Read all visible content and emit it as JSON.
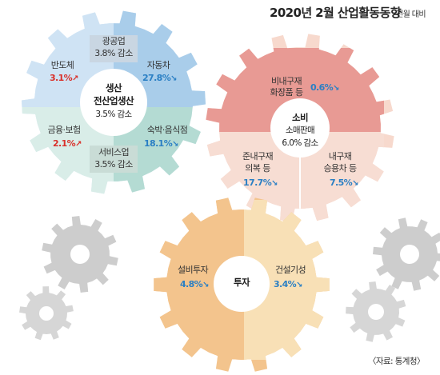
{
  "header": {
    "title": "2020년 2월 산업활동동향",
    "unit": "전월 대비"
  },
  "production": {
    "center": {
      "title": "생산",
      "subtitle": "전산업생산",
      "value": "3.5% 감소"
    },
    "mining": {
      "label": "광공업",
      "value": "3.8% 감소"
    },
    "semiconductor": {
      "label": "반도체",
      "value": "3.1%",
      "direction": "up"
    },
    "automobile": {
      "label": "자동차",
      "value": "27.8%",
      "direction": "down"
    },
    "finance": {
      "label": "금융·보험",
      "value": "2.1%",
      "direction": "up"
    },
    "lodging": {
      "label": "숙박·음식점",
      "value": "18.1%",
      "direction": "down"
    },
    "services": {
      "label": "서비스업",
      "value": "3.5% 감소"
    }
  },
  "consumption": {
    "center": {
      "title": "소비",
      "subtitle": "소매판매",
      "value": "6.0% 감소"
    },
    "nondurable": {
      "label_1": "비내구재",
      "label_2": "화장품 등",
      "value": "0.6%",
      "direction": "down"
    },
    "semidurable": {
      "label_1": "준내구재",
      "label_2": "의복 등",
      "value": "17.7%",
      "direction": "down"
    },
    "durable": {
      "label_1": "내구재",
      "label_2": "승용차 등",
      "value": "7.5%",
      "direction": "down"
    }
  },
  "investment": {
    "center": {
      "title": "투자"
    },
    "equipment": {
      "label": "설비투자",
      "value": "4.8%",
      "direction": "down"
    },
    "construction": {
      "label": "건설기성",
      "value": "3.4%",
      "direction": "down"
    }
  },
  "source": "〈자료: 통계청〉",
  "colors": {
    "prod_blue": "#a9cdea",
    "prod_blue_light": "#d6e8f6",
    "prod_green": "#b4dbd3",
    "prod_green_light": "#d9ede8",
    "cons_red": "#e89a94",
    "cons_peach": "#f7d9cd",
    "inv_orange": "#f3c48d",
    "inv_yellow": "#f8e0b6",
    "gray_gear": "#c8c8c8",
    "accent_up": "#d9302a",
    "accent_down": "#2a7fc4"
  }
}
